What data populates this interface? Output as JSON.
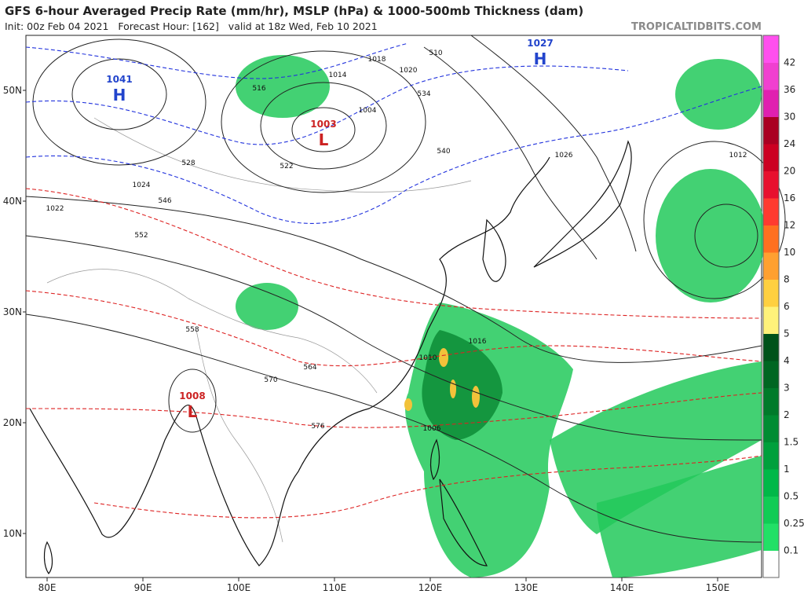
{
  "header": {
    "title": "GFS 6-hour Averaged Precip Rate (mm/hr), MSLP (hPa) & 1000-500mb Thickness (dam)",
    "subtitle": "Init: 00z Feb 04 2021   Forecast Hour: [162]   valid at 18z Wed, Feb 10 2021",
    "source": "TROPICALTIDBITS.COM"
  },
  "axes": {
    "lat_labels": [
      "50N",
      "40N",
      "30N",
      "20N",
      "10N"
    ],
    "lon_labels": [
      "80E",
      "90E",
      "100E",
      "110E",
      "120E",
      "130E",
      "140E",
      "150E"
    ]
  },
  "colorbar": {
    "labels": [
      "0.1",
      "0.25",
      "0.5",
      "1",
      "1.5",
      "2",
      "3",
      "4",
      "5",
      "6",
      "8",
      "10",
      "12",
      "16",
      "20",
      "24",
      "30",
      "36",
      "42"
    ]
  },
  "centers": [
    {
      "symbol": "H",
      "value": "1041"
    },
    {
      "symbol": "H",
      "value": "1027"
    },
    {
      "symbol": "L",
      "value": "1003"
    },
    {
      "symbol": "L",
      "value": "1008"
    }
  ],
  "contour_labels": [
    "1018",
    "1022",
    "1016",
    "1024",
    "1020",
    "1014",
    "1010",
    "1012",
    "1006",
    "1004",
    "1026",
    "546",
    "552",
    "558",
    "564",
    "570",
    "576",
    "510",
    "516",
    "522",
    "528",
    "534",
    "540"
  ]
}
